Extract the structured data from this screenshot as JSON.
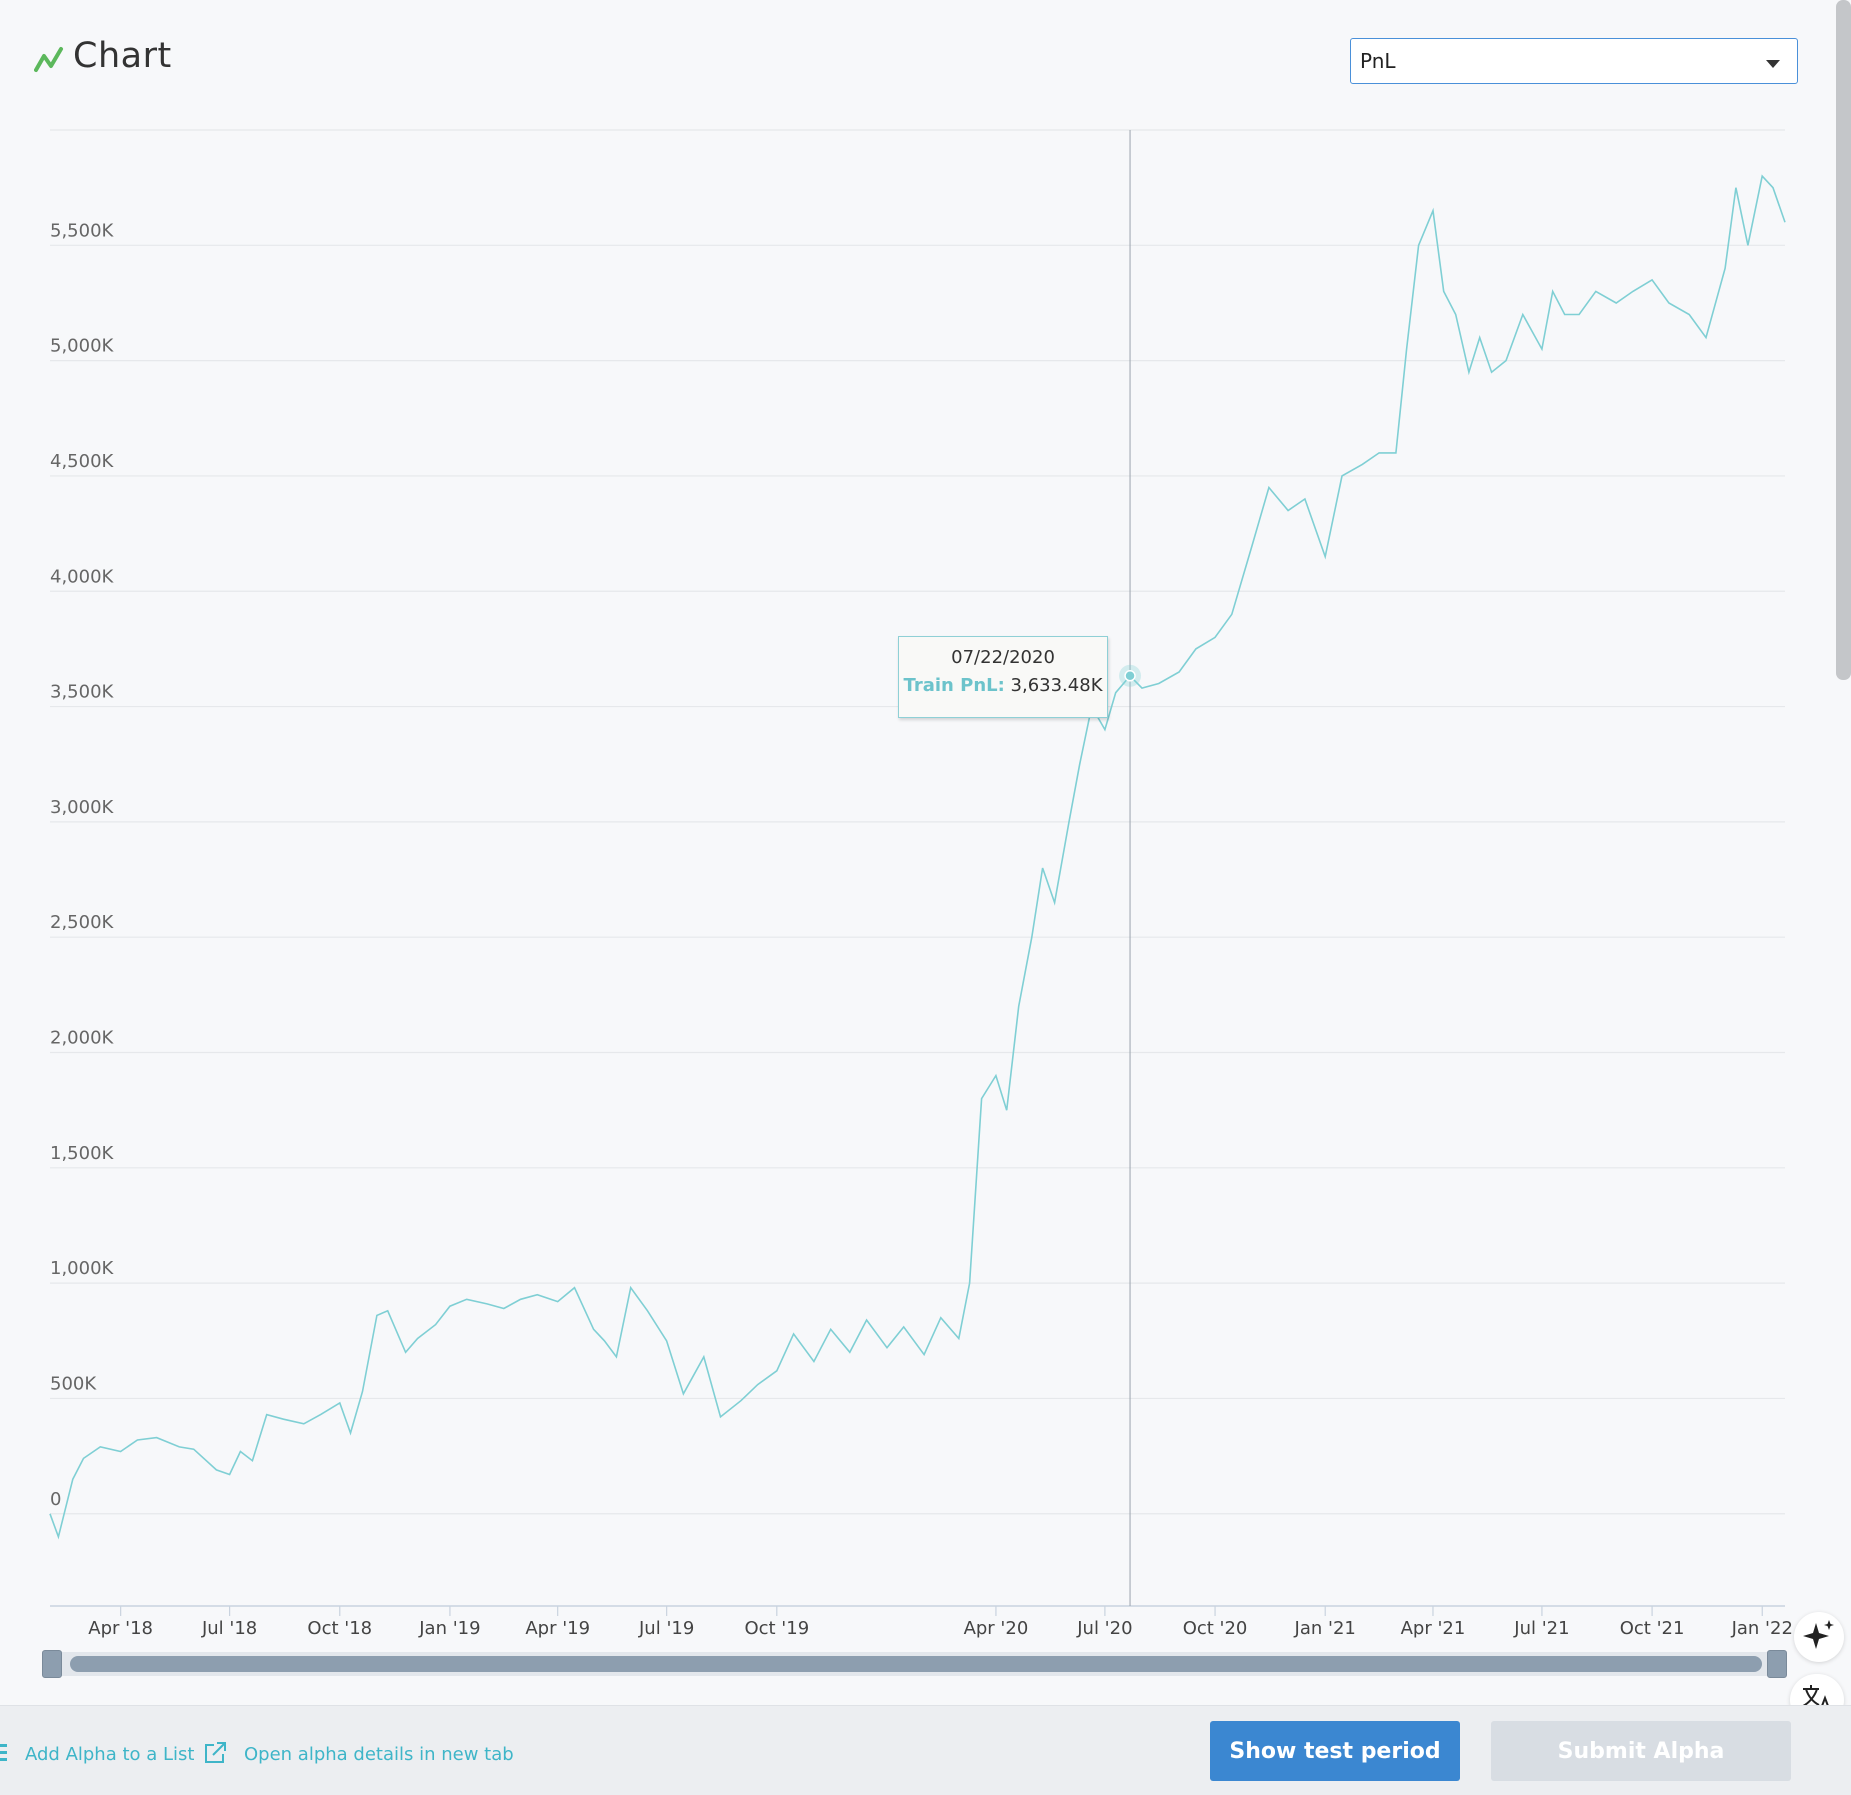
{
  "header": {
    "title": "Chart",
    "metric_select": {
      "value": "PnL"
    }
  },
  "tooltip": {
    "date": "07/22/2020",
    "label": "Train PnL:",
    "value": "3,633.48K"
  },
  "footer": {
    "add_to_list": "Add Alpha to a List",
    "open_details": "Open alpha details in new tab",
    "show_test_period": "Show test period",
    "submit_alpha": "Submit Alpha"
  },
  "colors": {
    "series": "#7fcfd4",
    "accent": "#3b87d1",
    "title_icon": "#5cb85c",
    "link": "#3eb5c8"
  },
  "icons": {
    "title": "chart-line-icon",
    "select": "caret-down-icon",
    "add_list": "list-icon",
    "open_details": "external-link-icon",
    "ai": "sparkle-icon",
    "translate": "translate-icon"
  },
  "chart_data": {
    "type": "line",
    "xlabel": "",
    "ylabel": "",
    "ylim": [
      -400,
      6000
    ],
    "xlim": [
      "2018-02-01",
      "2022-01-20"
    ],
    "y_ticks": [
      0,
      500,
      1000,
      1500,
      2000,
      2500,
      3000,
      3500,
      4000,
      4500,
      5000,
      5500
    ],
    "y_tick_labels": [
      "0",
      "500K",
      "1,000K",
      "1,500K",
      "2,000K",
      "2,500K",
      "3,000K",
      "3,500K",
      "4,000K",
      "4,500K",
      "5,000K",
      "5,500K"
    ],
    "x_ticks": [
      "2018-04-01",
      "2018-07-01",
      "2018-10-01",
      "2019-01-01",
      "2019-04-01",
      "2019-07-01",
      "2019-10-01",
      "2020-04-01",
      "2020-07-01",
      "2020-10-01",
      "2021-01-01",
      "2021-04-01",
      "2021-07-01",
      "2021-10-01",
      "2022-01-01"
    ],
    "x_tick_labels": [
      "Apr '18",
      "Jul '18",
      "Oct '18",
      "Jan '19",
      "Apr '19",
      "Jul '19",
      "Oct '19",
      "Apr '20",
      "Jul '20",
      "Oct '20",
      "Jan '21",
      "Apr '21",
      "Jul '21",
      "Oct '21",
      "Jan '22"
    ],
    "grid": true,
    "highlight": {
      "x": "2020-07-22",
      "y": 3633.48
    },
    "series": [
      {
        "name": "Train PnL",
        "unit": "K",
        "x": [
          "2018-02-01",
          "2018-02-08",
          "2018-02-20",
          "2018-03-01",
          "2018-03-15",
          "2018-04-01",
          "2018-04-15",
          "2018-05-01",
          "2018-05-20",
          "2018-06-01",
          "2018-06-20",
          "2018-07-01",
          "2018-07-10",
          "2018-07-20",
          "2018-08-01",
          "2018-08-15",
          "2018-09-01",
          "2018-09-15",
          "2018-10-01",
          "2018-10-10",
          "2018-10-20",
          "2018-11-01",
          "2018-11-10",
          "2018-11-25",
          "2018-12-05",
          "2018-12-20",
          "2019-01-01",
          "2019-01-15",
          "2019-02-01",
          "2019-02-15",
          "2019-03-01",
          "2019-03-15",
          "2019-04-01",
          "2019-04-15",
          "2019-05-01",
          "2019-05-10",
          "2019-05-20",
          "2019-06-01",
          "2019-06-15",
          "2019-07-01",
          "2019-07-15",
          "2019-08-01",
          "2019-08-15",
          "2019-09-01",
          "2019-09-15",
          "2019-10-01",
          "2019-10-15",
          "2019-11-01",
          "2019-11-15",
          "2019-12-01",
          "2019-12-15",
          "2020-01-01",
          "2020-01-15",
          "2020-02-01",
          "2020-02-15",
          "2020-03-01",
          "2020-03-10",
          "2020-03-20",
          "2020-04-01",
          "2020-04-10",
          "2020-04-20",
          "2020-05-01",
          "2020-05-10",
          "2020-05-20",
          "2020-06-01",
          "2020-06-10",
          "2020-06-20",
          "2020-07-01",
          "2020-07-10",
          "2020-07-22",
          "2020-08-01",
          "2020-08-15",
          "2020-09-01",
          "2020-09-15",
          "2020-10-01",
          "2020-10-15",
          "2020-11-01",
          "2020-11-15",
          "2020-12-01",
          "2020-12-15",
          "2021-01-01",
          "2021-01-15",
          "2021-02-01",
          "2021-02-15",
          "2021-03-01",
          "2021-03-10",
          "2021-03-20",
          "2021-04-01",
          "2021-04-10",
          "2021-04-20",
          "2021-05-01",
          "2021-05-10",
          "2021-05-20",
          "2021-06-01",
          "2021-06-15",
          "2021-07-01",
          "2021-07-10",
          "2021-07-20",
          "2021-08-01",
          "2021-08-15",
          "2021-09-01",
          "2021-09-15",
          "2021-10-01",
          "2021-10-15",
          "2021-11-01",
          "2021-11-15",
          "2021-12-01",
          "2021-12-10",
          "2021-12-20",
          "2022-01-01",
          "2022-01-10",
          "2022-01-20"
        ],
        "y": [
          0,
          -100,
          150,
          240,
          290,
          270,
          320,
          330,
          290,
          280,
          190,
          170,
          270,
          230,
          430,
          410,
          390,
          430,
          480,
          350,
          530,
          860,
          880,
          700,
          760,
          820,
          900,
          930,
          910,
          890,
          930,
          950,
          920,
          980,
          800,
          750,
          680,
          980,
          880,
          750,
          520,
          680,
          420,
          490,
          560,
          620,
          780,
          660,
          800,
          700,
          840,
          720,
          810,
          690,
          850,
          760,
          1000,
          1800,
          1900,
          1750,
          2200,
          2500,
          2800,
          2650,
          3000,
          3250,
          3500,
          3400,
          3560,
          3633,
          3580,
          3600,
          3650,
          3750,
          3800,
          3900,
          4200,
          4450,
          4350,
          4400,
          4150,
          4500,
          4550,
          4600,
          4600,
          5050,
          5500,
          5650,
          5300,
          5200,
          4950,
          5100,
          4950,
          5000,
          5200,
          5050,
          5300,
          5200,
          5200,
          5300,
          5250,
          5300,
          5350,
          5250,
          5200,
          5100,
          5400,
          5750,
          5500,
          5800,
          5750,
          5600
        ]
      }
    ]
  }
}
